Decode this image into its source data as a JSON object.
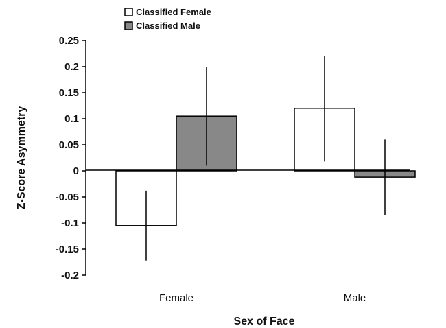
{
  "chart_data": {
    "type": "bar",
    "title": "",
    "xlabel": "Sex of Face",
    "ylabel": "Z-Score Asymmetry",
    "ylim": [
      -0.2,
      0.25
    ],
    "yticks": [
      "0.25",
      "0.2",
      "0.15",
      "0.1",
      "0.05",
      "0",
      "-0.05",
      "-0.1",
      "-0.15",
      "-0.2"
    ],
    "categories": [
      "Female",
      "Male"
    ],
    "legend_position": "top-left",
    "grid": false,
    "series": [
      {
        "name": "Classified Female",
        "color": "#ffffff",
        "values": [
          -0.105,
          0.12
        ],
        "error_low": [
          -0.172,
          0.018
        ],
        "error_high": [
          -0.038,
          0.22
        ]
      },
      {
        "name": "Classified Male",
        "color": "#888888",
        "values": [
          0.105,
          -0.012
        ],
        "error_low": [
          0.01,
          -0.085
        ],
        "error_high": [
          0.2,
          0.06
        ]
      }
    ]
  }
}
